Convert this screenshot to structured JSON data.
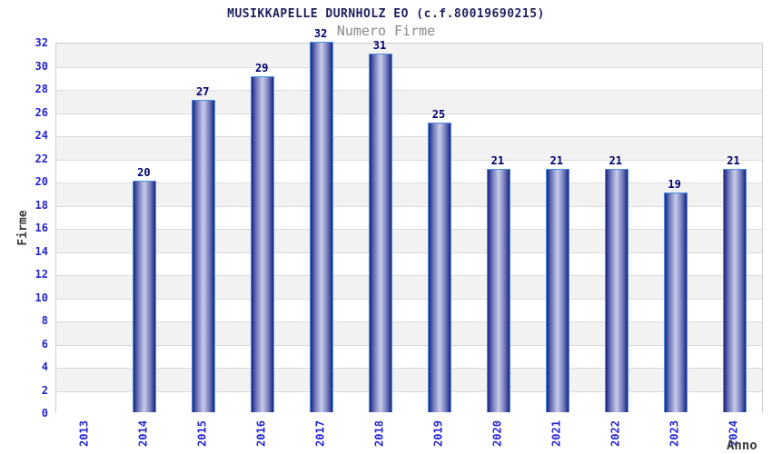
{
  "chart_data": {
    "type": "bar",
    "title": "MUSIKKAPELLE DURNHOLZ EO (c.f.80019690215)",
    "subtitle": "Numero Firme",
    "xlabel": "Anno",
    "ylabel": "Firme",
    "categories": [
      "2013",
      "2014",
      "2015",
      "2016",
      "2017",
      "2018",
      "2019",
      "2020",
      "2021",
      "2022",
      "2023",
      "2024"
    ],
    "values": [
      null,
      20,
      27,
      29,
      32,
      31,
      25,
      21,
      21,
      21,
      19,
      21
    ],
    "ylim": [
      0,
      32
    ],
    "ytick_step": 2,
    "grid": true,
    "legend": "none",
    "band_colors": [
      "#f2f2f2",
      "#ffffff"
    ],
    "colors": {
      "title": "#1f1f5f",
      "subtitle": "#8a8a8a",
      "tick_label": "#2424cf",
      "value_label": "#00006e",
      "axis_label": "#3a3a3a",
      "bar_outline": "#4a90e2",
      "bar_edge_dark": "#1b2380",
      "bar_mid": "#6f79bb",
      "bar_center_light": "#c9cde9",
      "gridline": "#dcdcdc",
      "plot_border": "#cfcfcf"
    }
  }
}
